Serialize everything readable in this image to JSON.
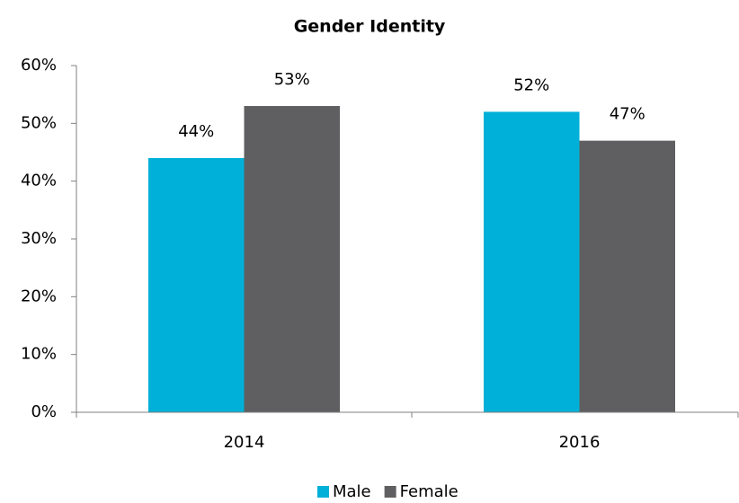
{
  "chart_data": {
    "type": "bar",
    "title": "Gender Identity",
    "categories": [
      "2014",
      "2016"
    ],
    "series": [
      {
        "name": "Male",
        "color": "#00b0d8",
        "values": [
          44,
          52
        ],
        "value_labels": [
          "44%",
          "52%"
        ]
      },
      {
        "name": "Female",
        "color": "#5f5f61",
        "values": [
          53,
          47
        ],
        "value_labels": [
          "53%",
          "47%"
        ]
      }
    ],
    "ylim": [
      0,
      60
    ],
    "yticks": [
      {
        "value": 0,
        "label": "0%"
      },
      {
        "value": 10,
        "label": "10%"
      },
      {
        "value": 20,
        "label": "20%"
      },
      {
        "value": 30,
        "label": "30%"
      },
      {
        "value": 40,
        "label": "40%"
      },
      {
        "value": 50,
        "label": "50%"
      },
      {
        "value": 60,
        "label": "60%"
      }
    ],
    "legend": "bottom"
  }
}
